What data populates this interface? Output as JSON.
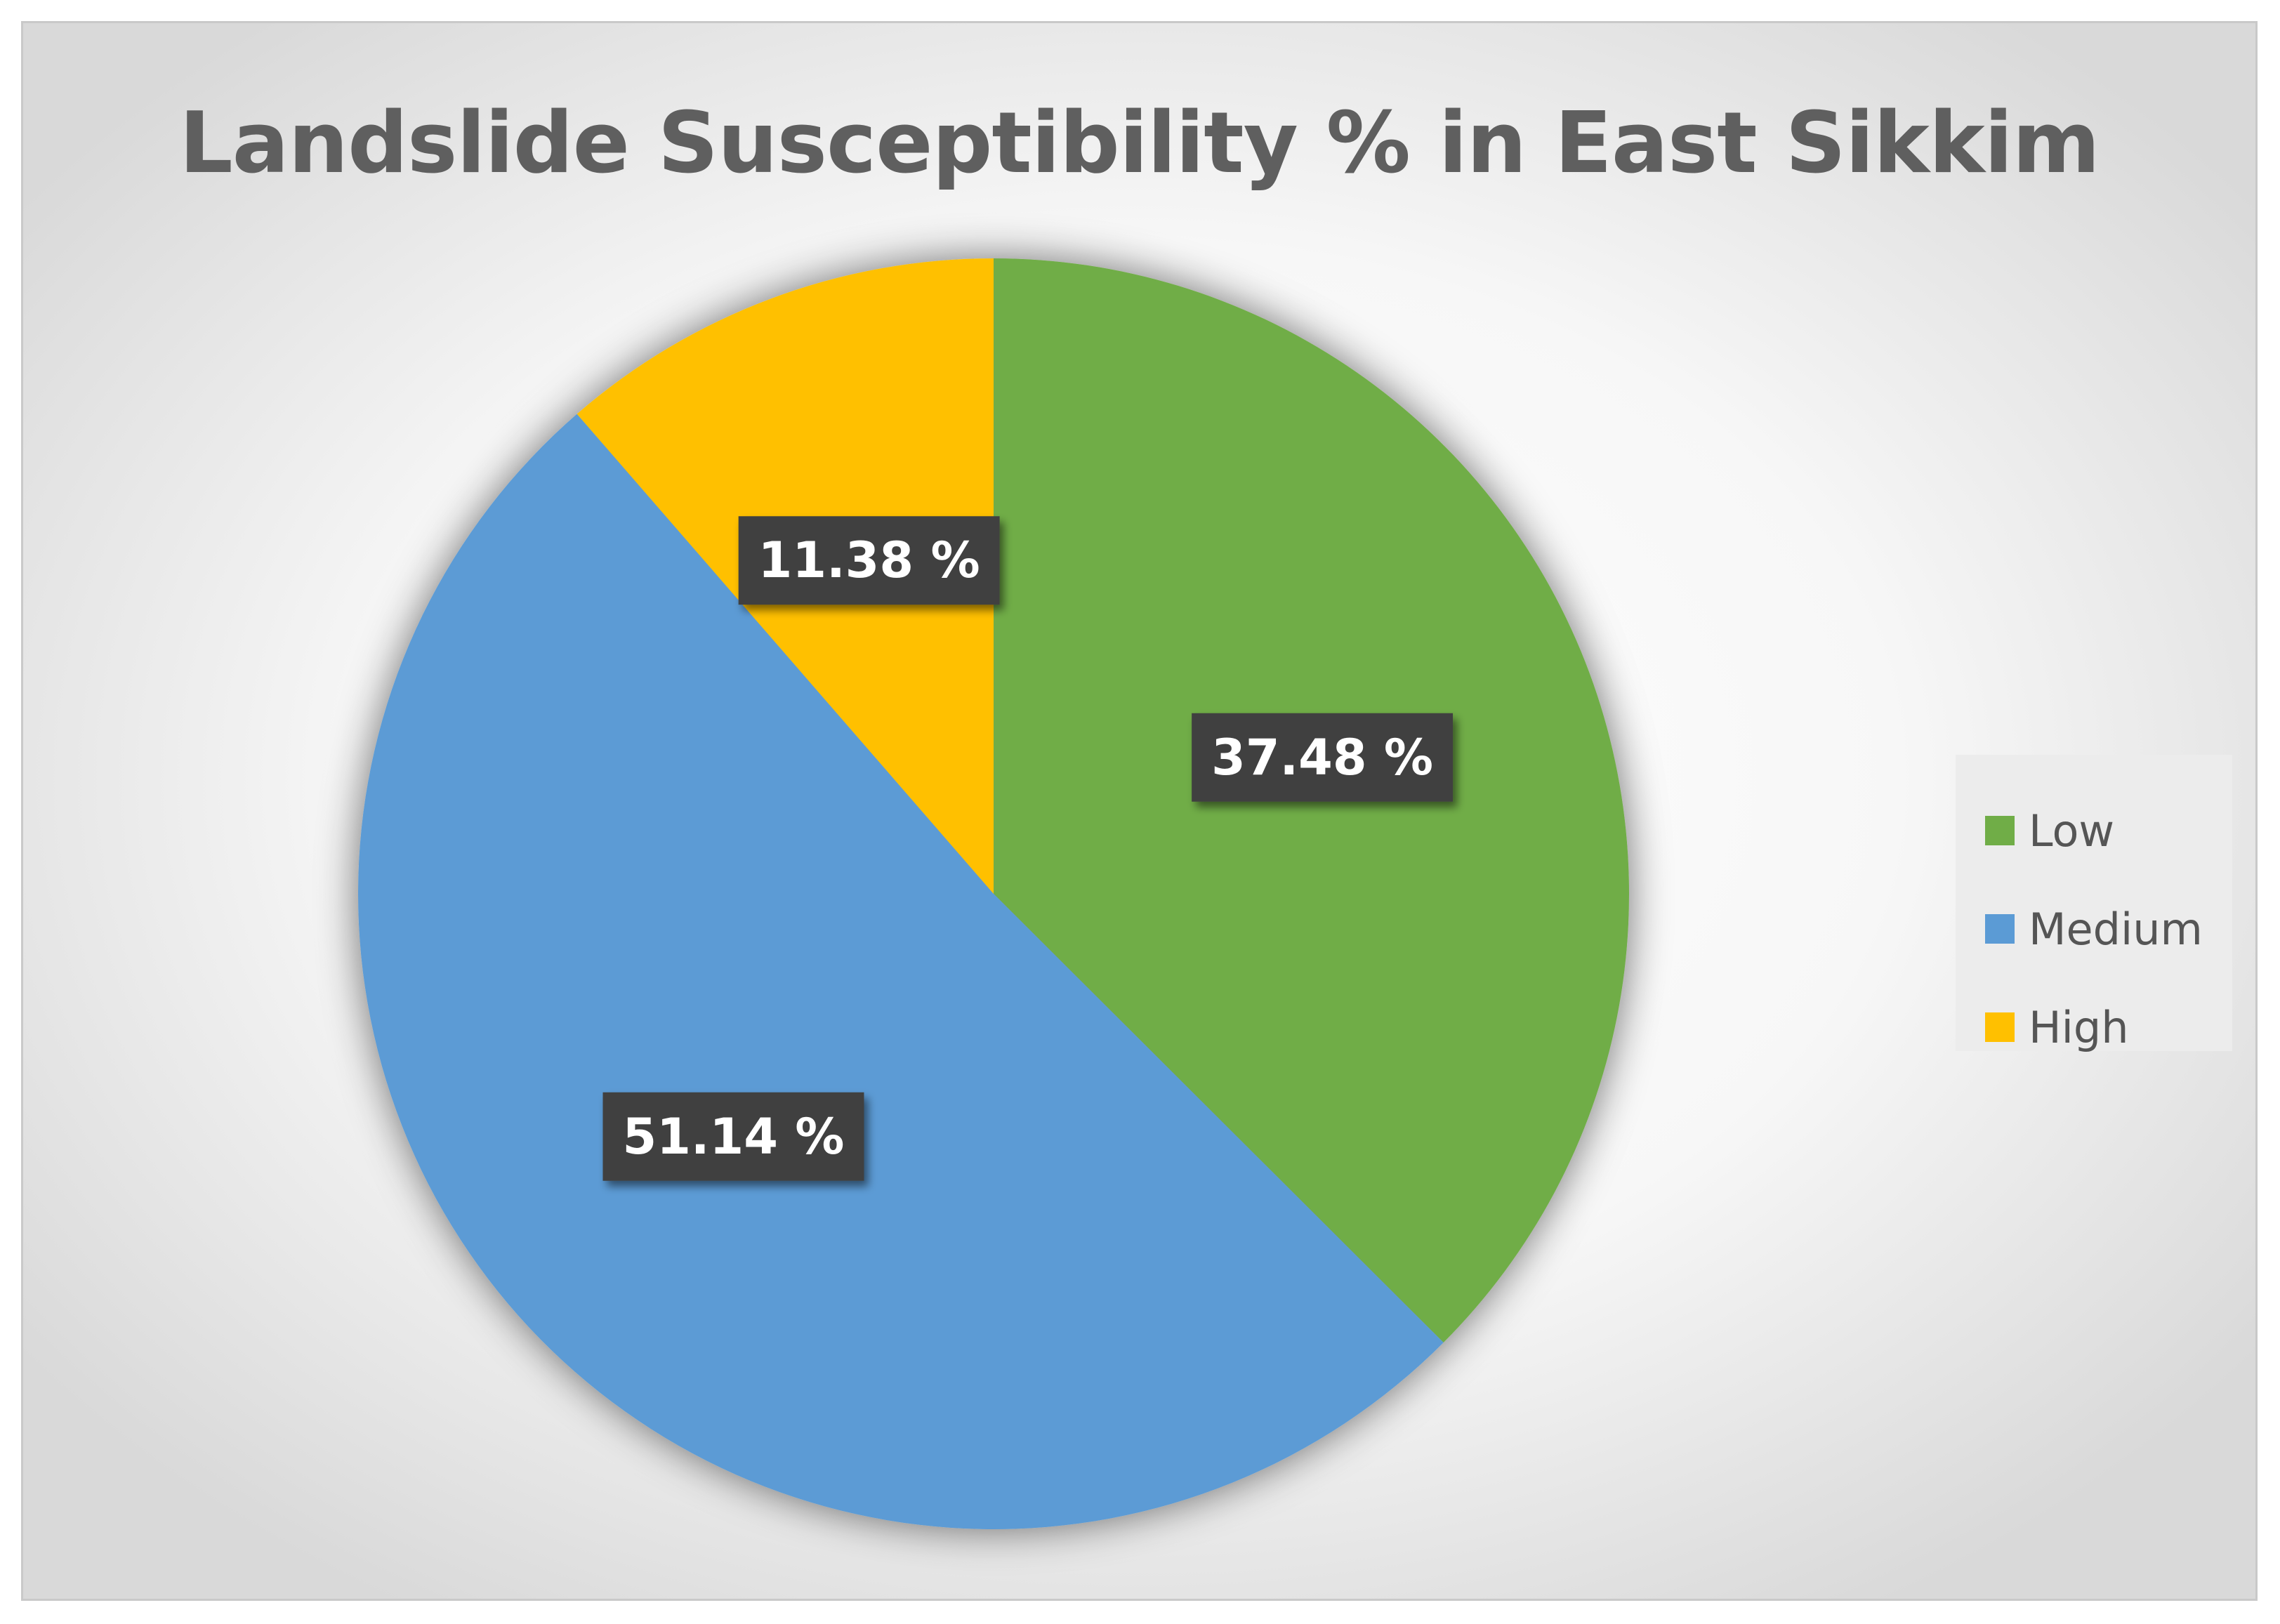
{
  "chart_data": {
    "type": "pie",
    "title": "Landslide Susceptibility % in East Sikkim",
    "categories": [
      "Low",
      "Medium",
      "High"
    ],
    "values": [
      37.48,
      51.14,
      11.38
    ],
    "data_labels": [
      "37.48 %",
      "51.14 %",
      "11.38 %"
    ],
    "colors": [
      "#70AD47",
      "#5B9BD5",
      "#FFC000"
    ],
    "start_angle_deg": 0,
    "direction": "clockwise",
    "legend": {
      "placement": "right",
      "entries": [
        "Low",
        "Medium",
        "High"
      ]
    }
  }
}
